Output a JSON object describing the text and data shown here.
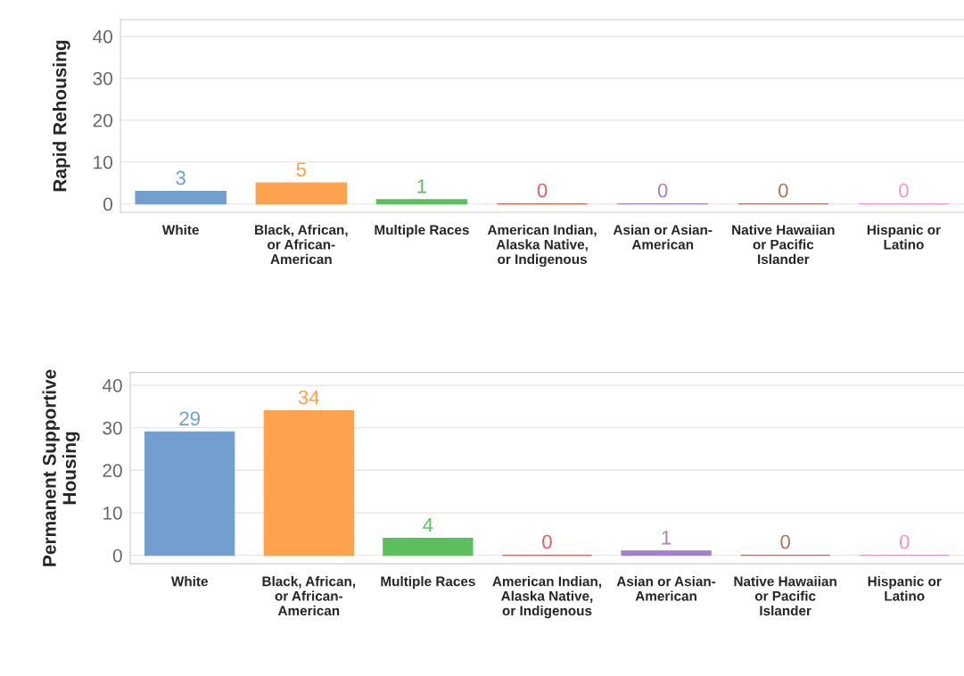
{
  "chart_data": [
    {
      "type": "bar",
      "ylabel": "Rapid Rehousing",
      "categories": [
        "White",
        "Black, African, or African-American",
        "Multiple Races",
        "American Indian, Alaska Native, or Indigenous",
        "Asian or Asian-American",
        "Native Hawaiian or Pacific Islander",
        "Hispanic or Latino"
      ],
      "values": [
        3,
        5,
        1,
        0,
        0,
        0,
        0
      ],
      "colors": [
        "#729fcf",
        "#ffa24f",
        "#5dbe5d",
        "#e35f5a",
        "#a57fcf",
        "#a4746a",
        "#f294cc"
      ],
      "ylim": [
        -2,
        44
      ],
      "yticks": [
        0,
        10,
        20,
        30,
        40
      ],
      "grid": "y",
      "data_labels": true
    },
    {
      "type": "bar",
      "ylabel": "Permanent Supportive Housing",
      "categories": [
        "White",
        "Black, African, or African-American",
        "Multiple Races",
        "American Indian, Alaska Native, or Indigenous",
        "Asian or Asian-American",
        "Native Hawaiian or Pacific Islander",
        "Hispanic or Latino"
      ],
      "values": [
        29,
        34,
        4,
        0,
        1,
        0,
        0
      ],
      "colors": [
        "#729fcf",
        "#ffa24f",
        "#5dbe5d",
        "#e35f5a",
        "#a57fcf",
        "#a4746a",
        "#f294cc"
      ],
      "ylim": [
        -2,
        43
      ],
      "yticks": [
        0,
        10,
        20,
        30,
        40
      ],
      "grid": "y",
      "data_labels": true
    }
  ]
}
